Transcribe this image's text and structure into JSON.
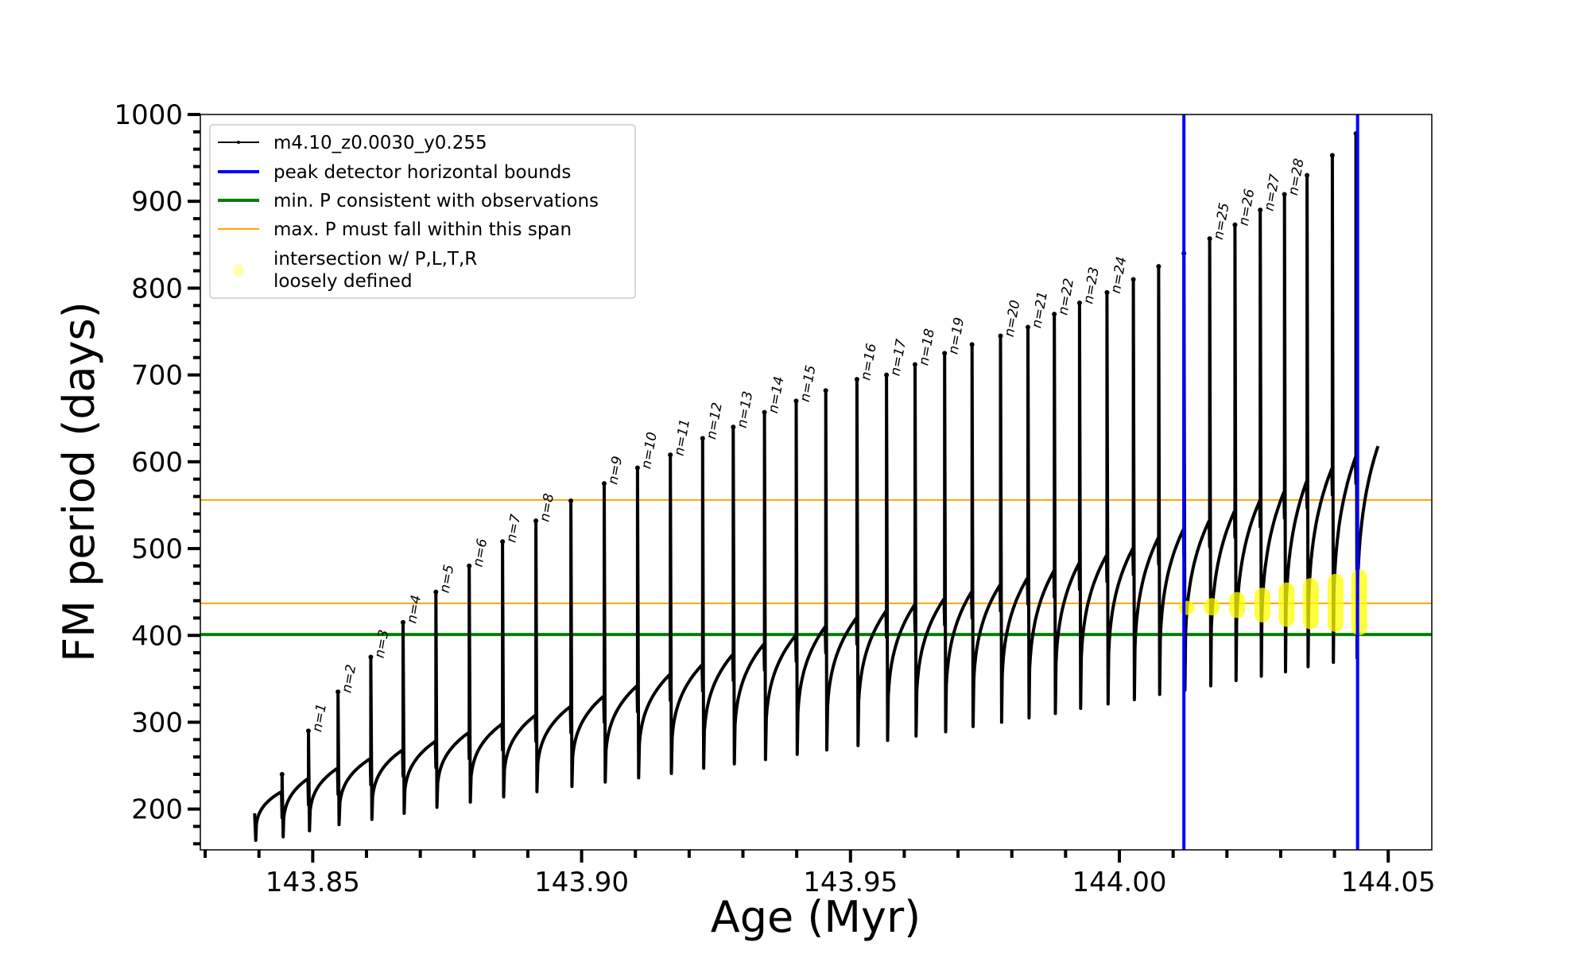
{
  "chart_data": {
    "type": "line",
    "xlabel": "Age (Myr)",
    "ylabel": "FM period (days)",
    "xlim": [
      143.8291,
      144.0581
    ],
    "ylim": [
      153,
      1000
    ],
    "xticks": [
      143.85,
      143.9,
      143.95,
      144.0,
      144.05
    ],
    "xtick_labels": [
      "143.85",
      "143.90",
      "143.95",
      "144.00",
      "144.05"
    ],
    "xminor_step": 0.01,
    "yticks": [
      200,
      300,
      400,
      500,
      600,
      700,
      800,
      900,
      1000
    ],
    "ytick_labels": [
      "200",
      "300",
      "400",
      "500",
      "600",
      "700",
      "800",
      "900",
      "1000"
    ],
    "yminor_step": 20,
    "legend_position": "upper-left",
    "legend": [
      {
        "label": "m4.10_z0.0030_y0.255",
        "kind": "line-marker",
        "color": "#000000"
      },
      {
        "label": "peak detector horizontal bounds",
        "kind": "line",
        "color": "#0000ff"
      },
      {
        "label": "min. P consistent with observations",
        "kind": "line",
        "color": "#008000"
      },
      {
        "label": "max. P must fall within this span",
        "kind": "thin-line",
        "color": "#ffa500"
      },
      {
        "label": "intersection w/ P,L,T,R",
        "label2": "loosely defined",
        "kind": "dot",
        "color": "#ffff99"
      }
    ],
    "series": {
      "name": "m4.10_z0.0030_y0.255",
      "start": {
        "age": 143.8392,
        "P": 195,
        "dip": 164
      },
      "end": {
        "age": 144.0481,
        "P": 618
      },
      "pulses": [
        {
          "age": 143.8443,
          "plateau": 220,
          "peak": 240,
          "dip": 168,
          "label": null
        },
        {
          "age": 143.8492,
          "plateau": 235,
          "peak": 290,
          "dip": 175,
          "label": "n=1"
        },
        {
          "age": 143.8547,
          "plateau": 247,
          "peak": 335,
          "dip": 182,
          "label": "n=2"
        },
        {
          "age": 143.8608,
          "plateau": 258,
          "peak": 375,
          "dip": 188,
          "label": "n=3"
        },
        {
          "age": 143.8668,
          "plateau": 268,
          "peak": 415,
          "dip": 195,
          "label": "n=4"
        },
        {
          "age": 143.8729,
          "plateau": 278,
          "peak": 450,
          "dip": 202,
          "label": "n=5"
        },
        {
          "age": 143.8791,
          "plateau": 288,
          "peak": 480,
          "dip": 208,
          "label": "n=6"
        },
        {
          "age": 143.8853,
          "plateau": 298,
          "peak": 508,
          "dip": 214,
          "label": "n=7"
        },
        {
          "age": 143.8915,
          "plateau": 308,
          "peak": 532,
          "dip": 220,
          "label": "n=8"
        },
        {
          "age": 143.898,
          "plateau": 318,
          "peak": 555,
          "dip": 226,
          "label": null
        },
        {
          "age": 143.9042,
          "plateau": 330,
          "peak": 575,
          "dip": 231,
          "label": "n=9"
        },
        {
          "age": 143.9104,
          "plateau": 342,
          "peak": 593,
          "dip": 236,
          "label": "n=10"
        },
        {
          "age": 143.9165,
          "plateau": 355,
          "peak": 608,
          "dip": 241,
          "label": "n=11"
        },
        {
          "age": 143.9225,
          "plateau": 366,
          "peak": 627,
          "dip": 247,
          "label": "n=12"
        },
        {
          "age": 143.9282,
          "plateau": 378,
          "peak": 640,
          "dip": 252,
          "label": "n=13"
        },
        {
          "age": 143.934,
          "plateau": 390,
          "peak": 657,
          "dip": 257,
          "label": "n=14"
        },
        {
          "age": 143.9399,
          "plateau": 400,
          "peak": 670,
          "dip": 263,
          "label": "n=15"
        },
        {
          "age": 143.9454,
          "plateau": 410,
          "peak": 682,
          "dip": 268,
          "label": null
        },
        {
          "age": 143.9512,
          "plateau": 420,
          "peak": 695,
          "dip": 273,
          "label": "n=16"
        },
        {
          "age": 143.9567,
          "plateau": 428,
          "peak": 700,
          "dip": 279,
          "label": "n=17"
        },
        {
          "age": 143.962,
          "plateau": 435,
          "peak": 712,
          "dip": 284,
          "label": "n=18"
        },
        {
          "age": 143.9675,
          "plateau": 442,
          "peak": 725,
          "dip": 289,
          "label": "n=19"
        },
        {
          "age": 143.9726,
          "plateau": 450,
          "peak": 735,
          "dip": 295,
          "label": null
        },
        {
          "age": 143.9779,
          "plateau": 458,
          "peak": 745,
          "dip": 300,
          "label": "n=20"
        },
        {
          "age": 143.983,
          "plateau": 466,
          "peak": 755,
          "dip": 305,
          "label": "n=21"
        },
        {
          "age": 143.9879,
          "plateau": 474,
          "peak": 770,
          "dip": 310,
          "label": "n=22"
        },
        {
          "age": 143.9926,
          "plateau": 483,
          "peak": 783,
          "dip": 316,
          "label": "n=23"
        },
        {
          "age": 143.9977,
          "plateau": 492,
          "peak": 795,
          "dip": 321,
          "label": "n=24"
        },
        {
          "age": 144.0026,
          "plateau": 500,
          "peak": 810,
          "dip": 326,
          "label": null
        },
        {
          "age": 144.0073,
          "plateau": 512,
          "peak": 825,
          "dip": 332,
          "label": null
        },
        {
          "age": 144.012,
          "plateau": 522,
          "peak": 840,
          "dip": 337,
          "label": null
        },
        {
          "age": 144.0168,
          "plateau": 532,
          "peak": 857,
          "dip": 342,
          "label": "n=25"
        },
        {
          "age": 144.0215,
          "plateau": 543,
          "peak": 873,
          "dip": 348,
          "label": "n=26"
        },
        {
          "age": 144.0262,
          "plateau": 555,
          "peak": 890,
          "dip": 353,
          "label": "n=27"
        },
        {
          "age": 144.0307,
          "plateau": 565,
          "peak": 908,
          "dip": 358,
          "label": "n=28"
        },
        {
          "age": 144.0349,
          "plateau": 577,
          "peak": 930,
          "dip": 364,
          "label": null
        },
        {
          "age": 144.0396,
          "plateau": 592,
          "peak": 953,
          "dip": 369,
          "label": null
        },
        {
          "age": 144.044,
          "plateau": 605,
          "peak": 978,
          "dip": 374,
          "label": null
        }
      ]
    },
    "vlines_blue": [
      144.012,
      144.0443
    ],
    "hline_green": 401,
    "hlines_orange": [
      437,
      556
    ],
    "intersections": [
      {
        "age": 144.0125,
        "ymin": 425,
        "ymax": 440
      },
      {
        "age": 144.0172,
        "ymin": 423,
        "ymax": 443
      },
      {
        "age": 144.0219,
        "ymin": 420,
        "ymax": 450
      },
      {
        "age": 144.0266,
        "ymin": 415,
        "ymax": 455
      },
      {
        "age": 144.0311,
        "ymin": 410,
        "ymax": 461
      },
      {
        "age": 144.0356,
        "ymin": 407,
        "ymax": 466
      },
      {
        "age": 144.0402,
        "ymin": 404,
        "ymax": 471
      },
      {
        "age": 144.0446,
        "ymin": 400,
        "ymax": 476
      }
    ]
  }
}
